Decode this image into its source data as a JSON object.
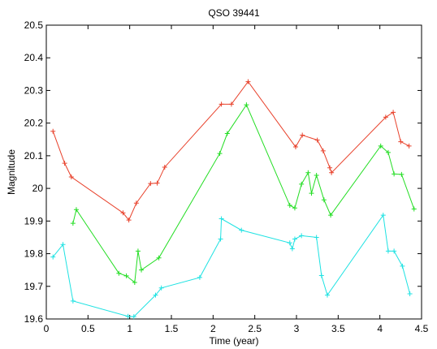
{
  "chart_data": {
    "type": "line",
    "title": "QSO 39441",
    "xlabel": "Time (year)",
    "ylabel": "Magnitude",
    "xlim": [
      0,
      4.5
    ],
    "ylim": [
      19.6,
      20.5
    ],
    "xticks": [
      "0",
      "0.5",
      "1",
      "1.5",
      "2",
      "2.5",
      "3",
      "3.5",
      "4",
      "4.5"
    ],
    "yticks": [
      "19.6",
      "19.7",
      "19.8",
      "19.9",
      "20",
      "20.1",
      "20.2",
      "20.3",
      "20.4",
      "20.5"
    ],
    "grid": false,
    "legend": false,
    "marker": "+",
    "series": [
      {
        "color": "#e8402a",
        "points": [
          [
            0.08,
            20.175
          ],
          [
            0.22,
            20.077
          ],
          [
            0.3,
            20.035
          ],
          [
            0.92,
            19.925
          ],
          [
            0.99,
            19.903
          ],
          [
            1.08,
            19.955
          ],
          [
            1.25,
            20.015
          ],
          [
            1.33,
            20.016
          ],
          [
            1.42,
            20.065
          ],
          [
            2.1,
            20.258
          ],
          [
            2.22,
            20.258
          ],
          [
            2.42,
            20.327
          ],
          [
            2.99,
            20.127
          ],
          [
            3.07,
            20.163
          ],
          [
            3.25,
            20.148
          ],
          [
            3.32,
            20.115
          ],
          [
            3.4,
            20.063
          ],
          [
            3.42,
            20.048
          ],
          [
            4.07,
            20.218
          ],
          [
            4.16,
            20.233
          ],
          [
            4.25,
            20.143
          ],
          [
            4.35,
            20.13
          ]
        ]
      },
      {
        "color": "#22dd22",
        "points": [
          [
            0.32,
            19.893
          ],
          [
            0.36,
            19.935
          ],
          [
            0.87,
            19.74
          ],
          [
            0.96,
            19.732
          ],
          [
            1.06,
            19.712
          ],
          [
            1.1,
            19.808
          ],
          [
            1.14,
            19.75
          ],
          [
            1.35,
            19.787
          ],
          [
            2.08,
            20.107
          ],
          [
            2.17,
            20.168
          ],
          [
            2.4,
            20.256
          ],
          [
            2.92,
            19.948
          ],
          [
            2.98,
            19.94
          ],
          [
            3.06,
            20.013
          ],
          [
            3.14,
            20.048
          ],
          [
            3.18,
            19.985
          ],
          [
            3.24,
            20.04
          ],
          [
            3.33,
            19.965
          ],
          [
            3.41,
            19.918
          ],
          [
            4.01,
            20.13
          ],
          [
            4.1,
            20.11
          ],
          [
            4.17,
            20.044
          ],
          [
            4.26,
            20.043
          ],
          [
            4.41,
            19.937
          ]
        ]
      },
      {
        "color": "#1ee2e2",
        "points": [
          [
            0.08,
            19.79
          ],
          [
            0.2,
            19.828
          ],
          [
            0.32,
            19.655
          ],
          [
            0.98,
            19.608
          ],
          [
            1.05,
            19.607
          ],
          [
            1.31,
            19.673
          ],
          [
            1.38,
            19.695
          ],
          [
            1.84,
            19.727
          ],
          [
            2.09,
            19.845
          ],
          [
            2.1,
            19.907
          ],
          [
            2.34,
            19.872
          ],
          [
            2.92,
            19.833
          ],
          [
            2.95,
            19.815
          ],
          [
            2.98,
            19.845
          ],
          [
            3.06,
            19.855
          ],
          [
            3.24,
            19.85
          ],
          [
            3.3,
            19.733
          ],
          [
            3.37,
            19.673
          ],
          [
            4.04,
            19.918
          ],
          [
            4.1,
            19.808
          ],
          [
            4.17,
            19.808
          ],
          [
            4.27,
            19.762
          ],
          [
            4.36,
            19.677
          ]
        ]
      }
    ]
  }
}
